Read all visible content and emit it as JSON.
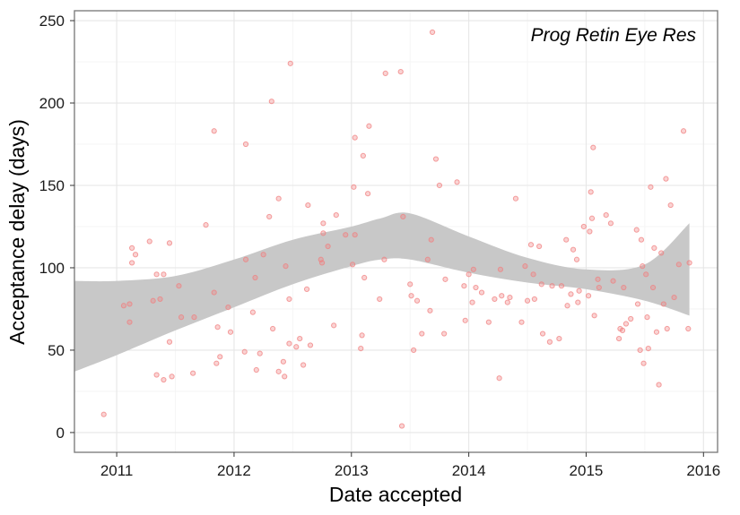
{
  "chart_data": {
    "type": "scatter",
    "title": "",
    "annotation": "Prog Retin Eye Res",
    "xlabel": "Date accepted",
    "ylabel": "Acceptance delay (days)",
    "xlim": [
      2010.64,
      2016.12
    ],
    "ylim": [
      -12,
      256
    ],
    "x_ticks": [
      2011,
      2012,
      2013,
      2014,
      2015,
      2016
    ],
    "x_tick_labels": [
      "2011",
      "2012",
      "2013",
      "2014",
      "2015",
      "2016"
    ],
    "y_ticks": [
      0,
      50,
      100,
      150,
      200,
      250
    ],
    "y_tick_labels": [
      "0",
      "50",
      "100",
      "150",
      "200",
      "250"
    ],
    "grid": true,
    "legend": "none",
    "colors": {
      "points": "#f08080",
      "band": "#c8c8c8",
      "grid_major": "#e6e6e6",
      "grid_minor": "#f3f3f3",
      "border": "#7f7f7f"
    },
    "series": [
      {
        "points": [
          [
            2010.89,
            11
          ],
          [
            2011.06,
            77
          ],
          [
            2011.11,
            78
          ],
          [
            2011.11,
            67
          ],
          [
            2011.13,
            112
          ],
          [
            2011.13,
            103
          ],
          [
            2011.16,
            108
          ],
          [
            2011.28,
            116
          ],
          [
            2011.31,
            80
          ],
          [
            2011.34,
            96
          ],
          [
            2011.34,
            35
          ],
          [
            2011.37,
            81
          ],
          [
            2011.4,
            96
          ],
          [
            2011.4,
            32
          ],
          [
            2011.45,
            115
          ],
          [
            2011.45,
            55
          ],
          [
            2011.47,
            34
          ],
          [
            2011.53,
            89
          ],
          [
            2011.55,
            70
          ],
          [
            2011.65,
            36
          ],
          [
            2011.66,
            70
          ],
          [
            2011.76,
            126
          ],
          [
            2011.83,
            85
          ],
          [
            2011.83,
            183
          ],
          [
            2011.85,
            42
          ],
          [
            2011.86,
            64
          ],
          [
            2011.88,
            46
          ],
          [
            2011.95,
            76
          ],
          [
            2011.97,
            61
          ],
          [
            2012.09,
            49
          ],
          [
            2012.1,
            105
          ],
          [
            2012.1,
            175
          ],
          [
            2012.16,
            73
          ],
          [
            2012.18,
            94
          ],
          [
            2012.19,
            38
          ],
          [
            2012.22,
            48
          ],
          [
            2012.25,
            108
          ],
          [
            2012.3,
            131
          ],
          [
            2012.32,
            201
          ],
          [
            2012.33,
            63
          ],
          [
            2012.38,
            37
          ],
          [
            2012.38,
            142
          ],
          [
            2012.42,
            43
          ],
          [
            2012.43,
            34
          ],
          [
            2012.44,
            101
          ],
          [
            2012.47,
            54
          ],
          [
            2012.47,
            81
          ],
          [
            2012.48,
            224
          ],
          [
            2012.53,
            52
          ],
          [
            2012.56,
            57
          ],
          [
            2012.59,
            41
          ],
          [
            2012.62,
            87
          ],
          [
            2012.63,
            138
          ],
          [
            2012.65,
            53
          ],
          [
            2012.74,
            105
          ],
          [
            2012.75,
            103
          ],
          [
            2012.76,
            121
          ],
          [
            2012.76,
            127
          ],
          [
            2012.8,
            113
          ],
          [
            2012.85,
            65
          ],
          [
            2012.87,
            132
          ],
          [
            2012.95,
            120
          ],
          [
            2013.01,
            102
          ],
          [
            2013.02,
            149
          ],
          [
            2013.03,
            179
          ],
          [
            2013.03,
            120
          ],
          [
            2013.08,
            51
          ],
          [
            2013.09,
            59
          ],
          [
            2013.1,
            168
          ],
          [
            2013.11,
            94
          ],
          [
            2013.14,
            145
          ],
          [
            2013.15,
            186
          ],
          [
            2013.24,
            81
          ],
          [
            2013.28,
            105
          ],
          [
            2013.29,
            218
          ],
          [
            2013.42,
            219
          ],
          [
            2013.43,
            4
          ],
          [
            2013.44,
            131
          ],
          [
            2013.5,
            90
          ],
          [
            2013.51,
            83
          ],
          [
            2013.53,
            50
          ],
          [
            2013.56,
            80
          ],
          [
            2013.6,
            60
          ],
          [
            2013.65,
            105
          ],
          [
            2013.67,
            74
          ],
          [
            2013.68,
            117
          ],
          [
            2013.69,
            243
          ],
          [
            2013.72,
            166
          ],
          [
            2013.75,
            150
          ],
          [
            2013.79,
            60
          ],
          [
            2013.8,
            93
          ],
          [
            2013.9,
            152
          ],
          [
            2013.96,
            89
          ],
          [
            2013.97,
            68
          ],
          [
            2014.0,
            96
          ],
          [
            2014.03,
            79
          ],
          [
            2014.04,
            99
          ],
          [
            2014.06,
            88
          ],
          [
            2014.11,
            85
          ],
          [
            2014.17,
            67
          ],
          [
            2014.22,
            81
          ],
          [
            2014.26,
            33
          ],
          [
            2014.27,
            99
          ],
          [
            2014.28,
            83
          ],
          [
            2014.33,
            79
          ],
          [
            2014.35,
            82
          ],
          [
            2014.4,
            142
          ],
          [
            2014.45,
            67
          ],
          [
            2014.48,
            101
          ],
          [
            2014.5,
            80
          ],
          [
            2014.53,
            114
          ],
          [
            2014.55,
            96
          ],
          [
            2014.56,
            81
          ],
          [
            2014.6,
            113
          ],
          [
            2014.62,
            90
          ],
          [
            2014.63,
            60
          ],
          [
            2014.69,
            55
          ],
          [
            2014.71,
            89
          ],
          [
            2014.77,
            57
          ],
          [
            2014.79,
            89
          ],
          [
            2014.83,
            117
          ],
          [
            2014.84,
            77
          ],
          [
            2014.87,
            84
          ],
          [
            2014.89,
            111
          ],
          [
            2014.92,
            105
          ],
          [
            2014.93,
            79
          ],
          [
            2014.94,
            86
          ],
          [
            2014.98,
            125
          ],
          [
            2015.02,
            83
          ],
          [
            2015.03,
            122
          ],
          [
            2015.04,
            146
          ],
          [
            2015.05,
            130
          ],
          [
            2015.06,
            173
          ],
          [
            2015.07,
            71
          ],
          [
            2015.1,
            93
          ],
          [
            2015.11,
            88
          ],
          [
            2015.17,
            132
          ],
          [
            2015.21,
            127
          ],
          [
            2015.23,
            92
          ],
          [
            2015.28,
            57
          ],
          [
            2015.29,
            63
          ],
          [
            2015.31,
            62
          ],
          [
            2015.32,
            88
          ],
          [
            2015.34,
            66
          ],
          [
            2015.38,
            69
          ],
          [
            2015.43,
            123
          ],
          [
            2015.44,
            78
          ],
          [
            2015.46,
            50
          ],
          [
            2015.47,
            117
          ],
          [
            2015.48,
            101
          ],
          [
            2015.49,
            42
          ],
          [
            2015.51,
            96
          ],
          [
            2015.52,
            70
          ],
          [
            2015.53,
            51
          ],
          [
            2015.55,
            149
          ],
          [
            2015.57,
            88
          ],
          [
            2015.58,
            112
          ],
          [
            2015.6,
            61
          ],
          [
            2015.62,
            29
          ],
          [
            2015.64,
            109
          ],
          [
            2015.66,
            78
          ],
          [
            2015.68,
            154
          ],
          [
            2015.69,
            63
          ],
          [
            2015.72,
            138
          ],
          [
            2015.75,
            82
          ],
          [
            2015.79,
            102
          ],
          [
            2015.83,
            183
          ],
          [
            2015.87,
            63
          ],
          [
            2015.88,
            103
          ]
        ]
      }
    ],
    "smooth_band": {
      "x": [
        2010.64,
        2011.0,
        2011.5,
        2012.0,
        2012.5,
        2013.0,
        2013.25,
        2013.5,
        2014.0,
        2014.5,
        2015.0,
        2015.5,
        2015.88
      ],
      "upper": [
        92,
        92,
        95,
        105,
        117,
        125,
        130,
        133,
        119,
        106,
        99,
        102,
        127
      ],
      "lower": [
        37,
        47,
        62,
        76,
        90,
        101,
        105,
        105,
        97,
        91,
        87,
        80,
        71
      ]
    }
  }
}
